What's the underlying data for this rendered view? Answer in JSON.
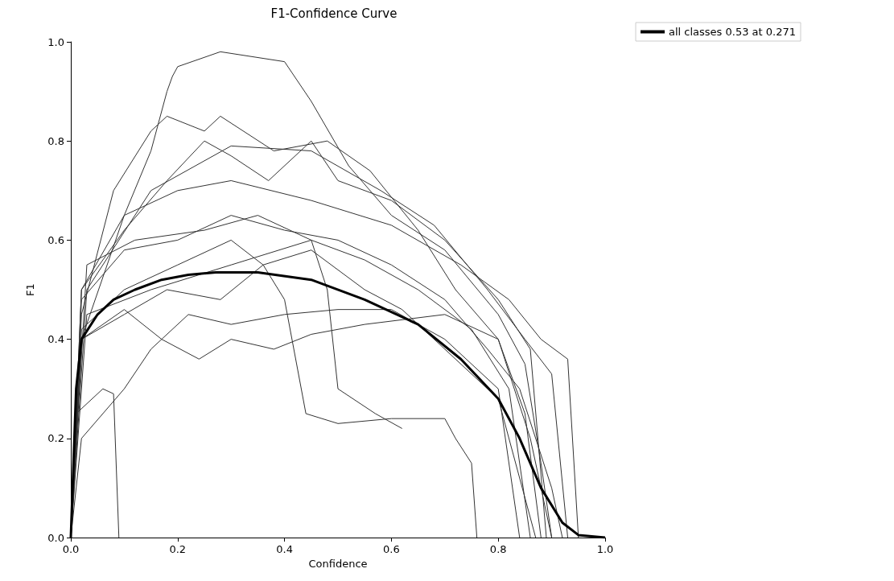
{
  "chart_data": {
    "type": "line",
    "title": "F1-Confidence Curve",
    "xlabel": "Confidence",
    "ylabel": "F1",
    "xlim": [
      0,
      1
    ],
    "ylim": [
      0,
      1
    ],
    "xticks": [
      {
        "value": 0,
        "label": "0.0"
      },
      0.2,
      0.4,
      0.6,
      0.8,
      {
        "value": 1,
        "label": "1.0"
      }
    ],
    "yticks": [
      {
        "value": 0,
        "label": "0.0"
      },
      0.2,
      0.4,
      0.6,
      0.8,
      {
        "value": 1,
        "label": "1.0"
      }
    ],
    "grid": false,
    "legend": "top right",
    "marker": "none",
    "line_style": "solid",
    "series": [
      {
        "color": "#333333",
        "x": [
          0,
          0.02,
          0.1,
          0.15,
          0.18,
          0.19,
          0.2,
          0.28,
          0.4,
          0.45,
          0.52,
          0.6,
          0.7,
          0.8,
          0.85,
          0.88,
          0.9
        ],
        "values": [
          0,
          0.4,
          0.65,
          0.78,
          0.9,
          0.93,
          0.95,
          0.98,
          0.96,
          0.88,
          0.75,
          0.65,
          0.58,
          0.45,
          0.35,
          0.15,
          0
        ]
      },
      {
        "color": "#333333",
        "x": [
          0,
          0.02,
          0.08,
          0.15,
          0.18,
          0.25,
          0.28,
          0.38,
          0.48,
          0.56,
          0.65,
          0.72,
          0.8,
          0.85,
          0.88
        ],
        "values": [
          0,
          0.45,
          0.7,
          0.82,
          0.85,
          0.82,
          0.85,
          0.78,
          0.8,
          0.74,
          0.62,
          0.5,
          0.4,
          0.25,
          0
        ]
      },
      {
        "color": "#333333",
        "x": [
          0,
          0.03,
          0.15,
          0.3,
          0.45,
          0.58,
          0.68,
          0.78,
          0.85,
          0.9,
          0.93
        ],
        "values": [
          0,
          0.5,
          0.7,
          0.79,
          0.78,
          0.7,
          0.63,
          0.5,
          0.4,
          0.33,
          0
        ]
      },
      {
        "color": "#333333",
        "x": [
          0,
          0.02,
          0.1,
          0.2,
          0.3,
          0.45,
          0.6,
          0.73,
          0.82,
          0.88,
          0.93,
          0.95
        ],
        "values": [
          0,
          0.5,
          0.65,
          0.7,
          0.72,
          0.68,
          0.63,
          0.55,
          0.48,
          0.4,
          0.36,
          0
        ]
      },
      {
        "color": "#333333",
        "x": [
          0,
          0.03,
          0.12,
          0.25,
          0.35,
          0.45,
          0.55,
          0.65,
          0.75,
          0.82,
          0.86
        ],
        "values": [
          0,
          0.55,
          0.6,
          0.62,
          0.65,
          0.6,
          0.56,
          0.5,
          0.42,
          0.3,
          0
        ]
      },
      {
        "color": "#333333",
        "x": [
          0,
          0.02,
          0.1,
          0.2,
          0.3,
          0.36,
          0.45,
          0.55,
          0.62,
          0.72,
          0.8,
          0.87
        ],
        "values": [
          0,
          0.42,
          0.5,
          0.55,
          0.6,
          0.55,
          0.58,
          0.5,
          0.46,
          0.36,
          0.28,
          0
        ]
      },
      {
        "color": "#333333",
        "x": [
          0,
          0.01,
          0.06,
          0.08,
          0.09
        ],
        "values": [
          0,
          0.25,
          0.3,
          0.29,
          0
        ]
      },
      {
        "color": "#333333",
        "x": [
          0,
          0.02,
          0.1,
          0.15,
          0.22,
          0.3,
          0.4,
          0.5,
          0.6,
          0.7,
          0.8,
          0.84
        ],
        "values": [
          0,
          0.2,
          0.3,
          0.38,
          0.45,
          0.43,
          0.45,
          0.46,
          0.46,
          0.4,
          0.3,
          0
        ]
      },
      {
        "color": "#333333",
        "x": [
          0,
          0.02,
          0.1,
          0.18,
          0.28,
          0.36,
          0.4,
          0.44,
          0.5,
          0.6,
          0.7,
          0.72,
          0.75,
          0.76
        ],
        "values": [
          0,
          0.4,
          0.45,
          0.5,
          0.48,
          0.55,
          0.48,
          0.25,
          0.23,
          0.24,
          0.24,
          0.2,
          0.15,
          0
        ]
      },
      {
        "color": "#333333",
        "x": [
          0,
          0.02,
          0.1,
          0.17,
          0.24,
          0.3,
          0.38,
          0.45,
          0.55,
          0.7,
          0.8,
          0.86,
          0.9
        ],
        "values": [
          0,
          0.4,
          0.46,
          0.4,
          0.36,
          0.4,
          0.38,
          0.41,
          0.43,
          0.45,
          0.4,
          0.2,
          0
        ]
      },
      {
        "color": "#333333",
        "x": [
          0,
          0.03,
          0.15,
          0.3,
          0.45,
          0.48,
          0.5,
          0.57,
          0.62
        ],
        "values": [
          0,
          0.45,
          0.5,
          0.55,
          0.6,
          0.5,
          0.3,
          0.25,
          0.22
        ]
      },
      {
        "color": "#333333",
        "x": [
          0,
          0.02,
          0.1,
          0.2,
          0.3,
          0.4,
          0.5,
          0.6,
          0.7,
          0.78,
          0.84,
          0.9,
          0.92
        ],
        "values": [
          0,
          0.48,
          0.58,
          0.6,
          0.65,
          0.62,
          0.6,
          0.55,
          0.48,
          0.38,
          0.3,
          0.1,
          0
        ]
      },
      {
        "color": "#333333",
        "x": [
          0,
          0.02,
          0.1,
          0.18,
          0.25,
          0.3,
          0.37,
          0.45,
          0.5,
          0.6,
          0.7,
          0.8,
          0.86,
          0.89
        ],
        "values": [
          0,
          0.5,
          0.62,
          0.72,
          0.8,
          0.77,
          0.72,
          0.8,
          0.72,
          0.68,
          0.6,
          0.48,
          0.38,
          0
        ]
      },
      {
        "name": "all classes 0.53 at 0.271",
        "color": "#000000",
        "x": [
          0,
          0.01,
          0.02,
          0.05,
          0.08,
          0.12,
          0.17,
          0.22,
          0.271,
          0.35,
          0.45,
          0.55,
          0.65,
          0.73,
          0.8,
          0.84,
          0.88,
          0.92,
          0.95,
          1.0
        ],
        "values": [
          0,
          0.3,
          0.4,
          0.45,
          0.48,
          0.5,
          0.52,
          0.53,
          0.535,
          0.535,
          0.52,
          0.48,
          0.43,
          0.36,
          0.28,
          0.2,
          0.1,
          0.03,
          0.005,
          0
        ]
      }
    ]
  }
}
